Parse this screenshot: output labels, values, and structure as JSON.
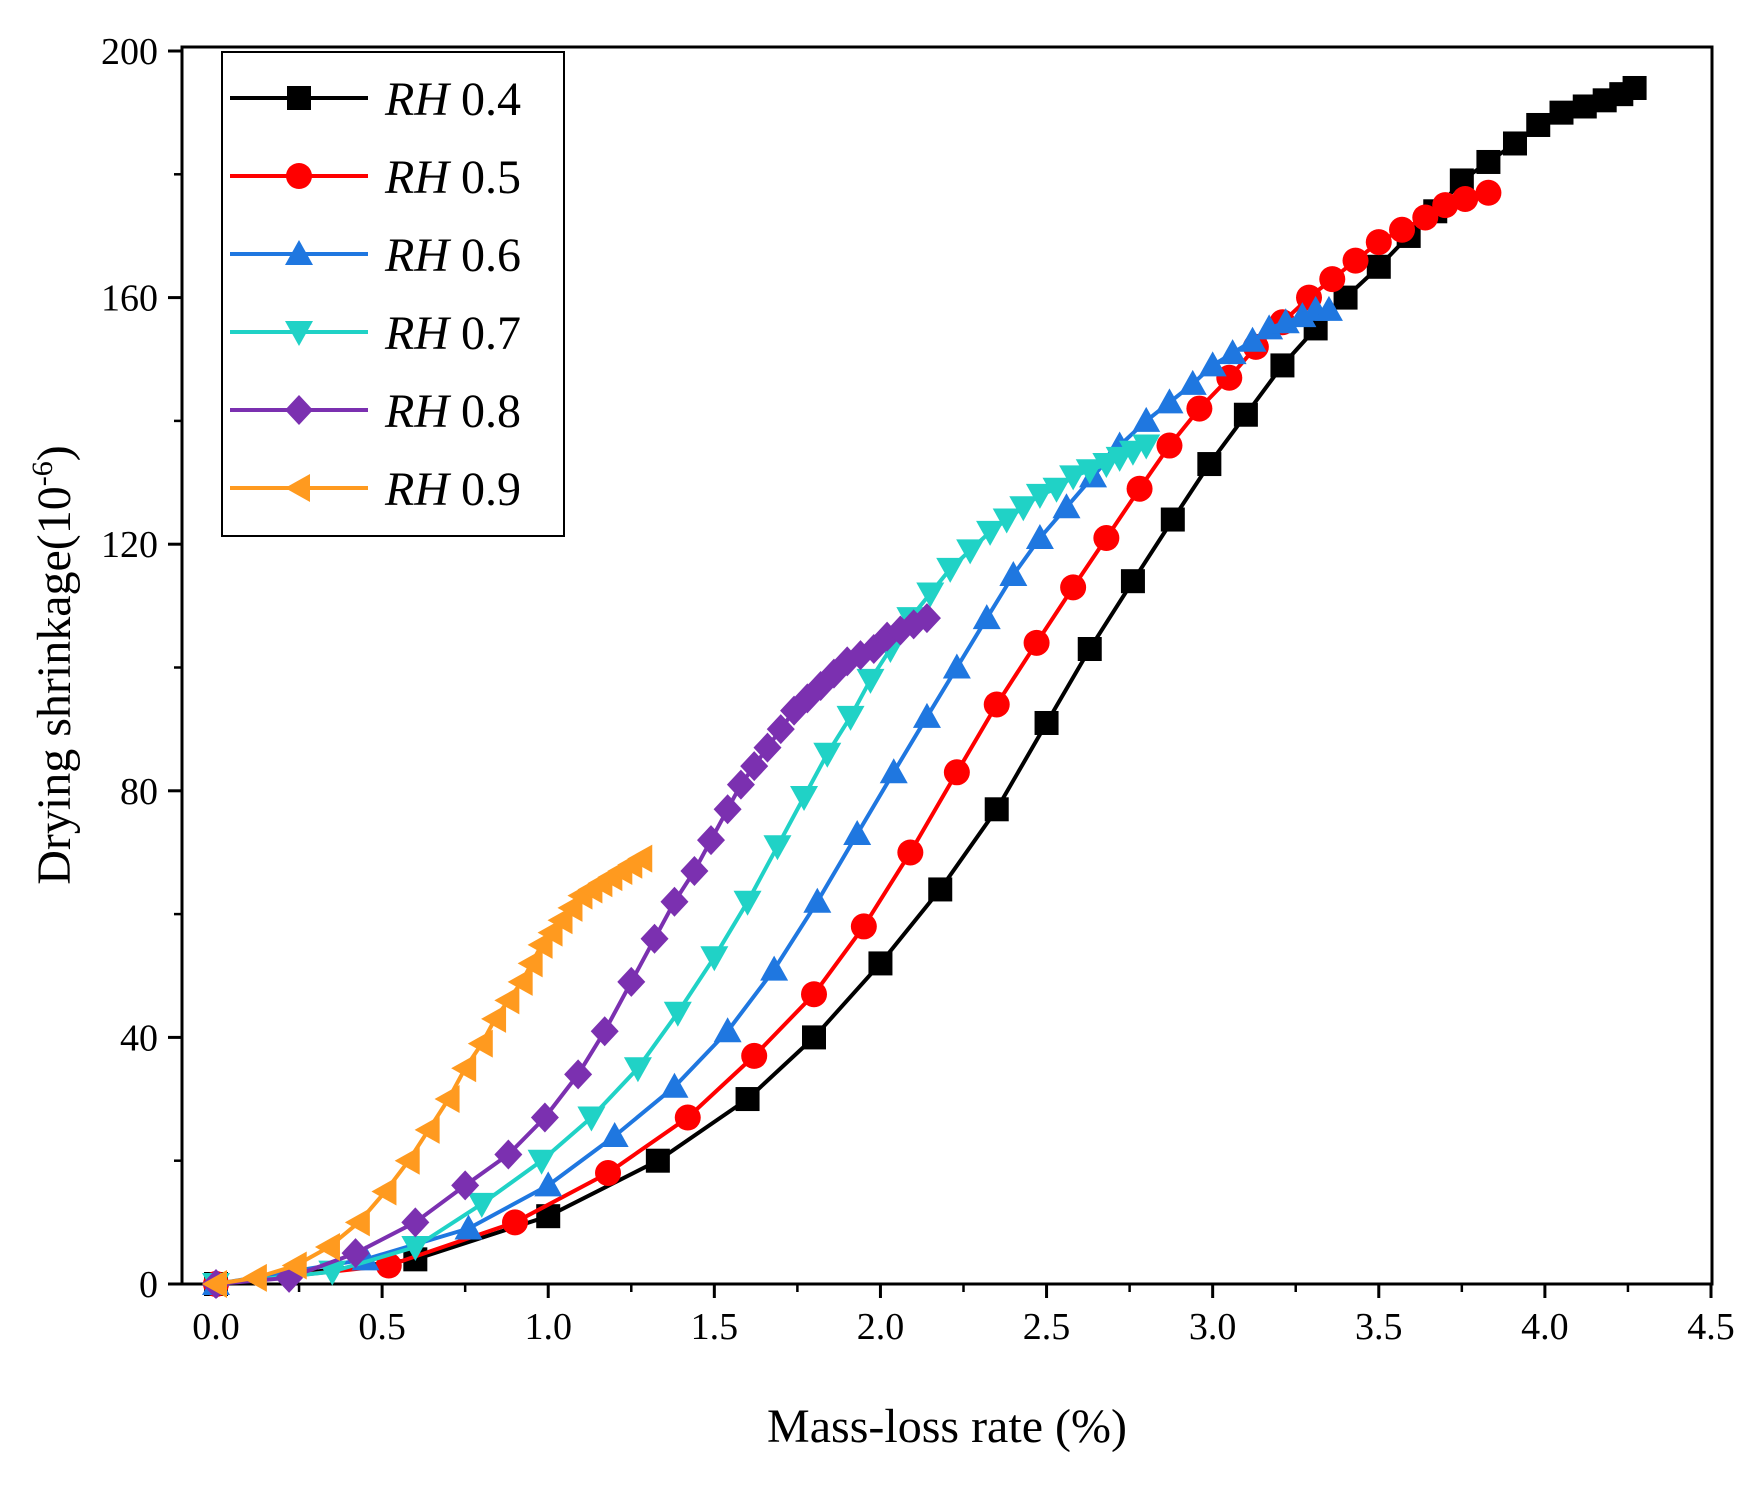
{
  "chart_data": {
    "type": "line",
    "title": "",
    "xlabel": "Mass-loss rate (%)",
    "ylabel_main": "Drying shrinkage(10",
    "ylabel_sup": "-6",
    "ylabel_end": ")",
    "xlim": [
      0,
      4.5
    ],
    "ylim": [
      0,
      200
    ],
    "xticks": [
      0.0,
      0.5,
      1.0,
      1.5,
      2.0,
      2.5,
      3.0,
      3.5,
      4.0,
      4.5
    ],
    "xtick_labels": [
      "0.0",
      "0.5",
      "1.0",
      "1.5",
      "2.0",
      "2.5",
      "3.0",
      "3.5",
      "4.0",
      "4.5"
    ],
    "yticks": [
      0,
      40,
      80,
      120,
      160,
      200
    ],
    "ytick_labels": [
      "0",
      "40",
      "80",
      "120",
      "160",
      "200"
    ],
    "grid": false,
    "legend_position": "top-left",
    "series": [
      {
        "name_italic": "RH",
        "name_value": " 0.4",
        "color": "#000000",
        "marker": "square",
        "x": [
          0,
          0.6,
          1.0,
          1.33,
          1.6,
          1.8,
          2.0,
          2.18,
          2.35,
          2.5,
          2.63,
          2.76,
          2.88,
          2.99,
          3.1,
          3.21,
          3.31,
          3.4,
          3.5,
          3.59,
          3.67,
          3.75,
          3.83,
          3.91,
          3.98,
          4.05,
          4.12,
          4.18,
          4.23,
          4.27
        ],
        "y": [
          0,
          4,
          11,
          20,
          30,
          40,
          52,
          64,
          77,
          91,
          103,
          114,
          124,
          133,
          141,
          149,
          155,
          160,
          165,
          170,
          174,
          179,
          182,
          185,
          188,
          190,
          191,
          192,
          193,
          194
        ]
      },
      {
        "name_italic": "RH",
        "name_value": " 0.5",
        "color": "#ff0000",
        "marker": "circle",
        "x": [
          0,
          0.52,
          0.9,
          1.18,
          1.42,
          1.62,
          1.8,
          1.95,
          2.09,
          2.23,
          2.35,
          2.47,
          2.58,
          2.68,
          2.78,
          2.87,
          2.96,
          3.05,
          3.13,
          3.21,
          3.29,
          3.36,
          3.43,
          3.5,
          3.57,
          3.64,
          3.7,
          3.76,
          3.83
        ],
        "y": [
          0,
          3,
          10,
          18,
          27,
          37,
          47,
          58,
          70,
          83,
          94,
          104,
          113,
          121,
          129,
          136,
          142,
          147,
          152,
          156,
          160,
          163,
          166,
          169,
          171,
          173,
          175,
          176,
          177
        ]
      },
      {
        "name_italic": "RH",
        "name_value": " 0.6",
        "color": "#1f77e0",
        "marker": "triangle-up",
        "x": [
          0,
          0.45,
          0.76,
          1.0,
          1.2,
          1.38,
          1.54,
          1.68,
          1.81,
          1.93,
          2.04,
          2.14,
          2.23,
          2.32,
          2.4,
          2.48,
          2.56,
          2.64,
          2.72,
          2.8,
          2.87,
          2.94,
          3.0,
          3.06,
          3.12,
          3.17,
          3.22,
          3.27,
          3.31,
          3.35
        ],
        "y": [
          0,
          4,
          9,
          16,
          24,
          32,
          41,
          51,
          62,
          73,
          83,
          92,
          100,
          108,
          115,
          121,
          126,
          131,
          136,
          140,
          143,
          146,
          149,
          151,
          153,
          155,
          156,
          157,
          158,
          158
        ]
      },
      {
        "name_italic": "RH",
        "name_value": " 0.7",
        "color": "#20d2c6",
        "marker": "triangle-down",
        "x": [
          0,
          0.35,
          0.6,
          0.8,
          0.98,
          1.13,
          1.27,
          1.39,
          1.5,
          1.6,
          1.69,
          1.77,
          1.84,
          1.91,
          1.97,
          2.03,
          2.09,
          2.15,
          2.21,
          2.27,
          2.33,
          2.38,
          2.43,
          2.48,
          2.53,
          2.58,
          2.63,
          2.68,
          2.72,
          2.76,
          2.8
        ],
        "y": [
          0,
          2,
          6,
          13,
          20,
          27,
          35,
          44,
          53,
          62,
          71,
          79,
          86,
          92,
          98,
          103,
          108,
          112,
          116,
          119,
          122,
          124,
          126,
          128,
          129,
          131,
          132,
          133,
          134,
          135,
          136
        ]
      },
      {
        "name_italic": "RH",
        "name_value": " 0.8",
        "color": "#7b30b0",
        "marker": "diamond",
        "x": [
          0,
          0.22,
          0.42,
          0.6,
          0.75,
          0.88,
          0.99,
          1.09,
          1.17,
          1.25,
          1.32,
          1.38,
          1.44,
          1.49,
          1.54,
          1.58,
          1.62,
          1.66,
          1.7,
          1.74,
          1.78,
          1.82,
          1.86,
          1.9,
          1.94,
          1.98,
          2.02,
          2.06,
          2.1,
          2.14
        ],
        "y": [
          0,
          1,
          5,
          10,
          16,
          21,
          27,
          34,
          41,
          49,
          56,
          62,
          67,
          72,
          77,
          81,
          84,
          87,
          90,
          93,
          95,
          97,
          99,
          101,
          102,
          103,
          105,
          106,
          107,
          108
        ]
      },
      {
        "name_italic": "RH",
        "name_value": " 0.9",
        "color": "#ff9a1f",
        "marker": "triangle-left",
        "x": [
          0,
          0.12,
          0.24,
          0.34,
          0.43,
          0.51,
          0.58,
          0.64,
          0.7,
          0.75,
          0.8,
          0.84,
          0.88,
          0.92,
          0.95,
          0.98,
          1.01,
          1.04,
          1.07,
          1.1,
          1.13,
          1.16,
          1.19,
          1.22,
          1.25,
          1.28
        ],
        "y": [
          0,
          1,
          3,
          6,
          10,
          15,
          20,
          25,
          30,
          35,
          39,
          43,
          46,
          49,
          52,
          55,
          57,
          59,
          61,
          63,
          64,
          65,
          66,
          67,
          68,
          69
        ]
      }
    ]
  }
}
